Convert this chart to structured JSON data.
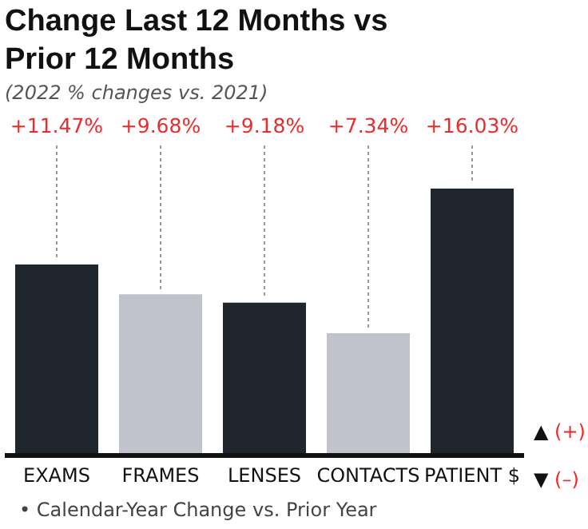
{
  "chart_data": {
    "type": "bar",
    "title": "Change Last 12 Months vs Prior 12 Months",
    "subtitle": "(2022 % changes vs. 2021)",
    "categories": [
      "EXAMS",
      "FRAMES",
      "LENSES",
      "CONTACTS",
      "PATIENT $"
    ],
    "values": [
      11.47,
      9.68,
      9.18,
      7.34,
      16.03
    ],
    "colors": [
      "#1f262e",
      "#c0c3cc",
      "#1f262e",
      "#c0c3cc",
      "#1f262e"
    ],
    "value_labels": [
      "+11.47%",
      "+9.68%",
      "+9.18%",
      "+7.34%",
      "+16.03%"
    ],
    "tick_labels": "x",
    "grid": false,
    "legend": false,
    "annotations": [
      "▲ (+)",
      "▼ (–)",
      "• Calendar-Year Change vs. Prior Year"
    ]
  }
}
